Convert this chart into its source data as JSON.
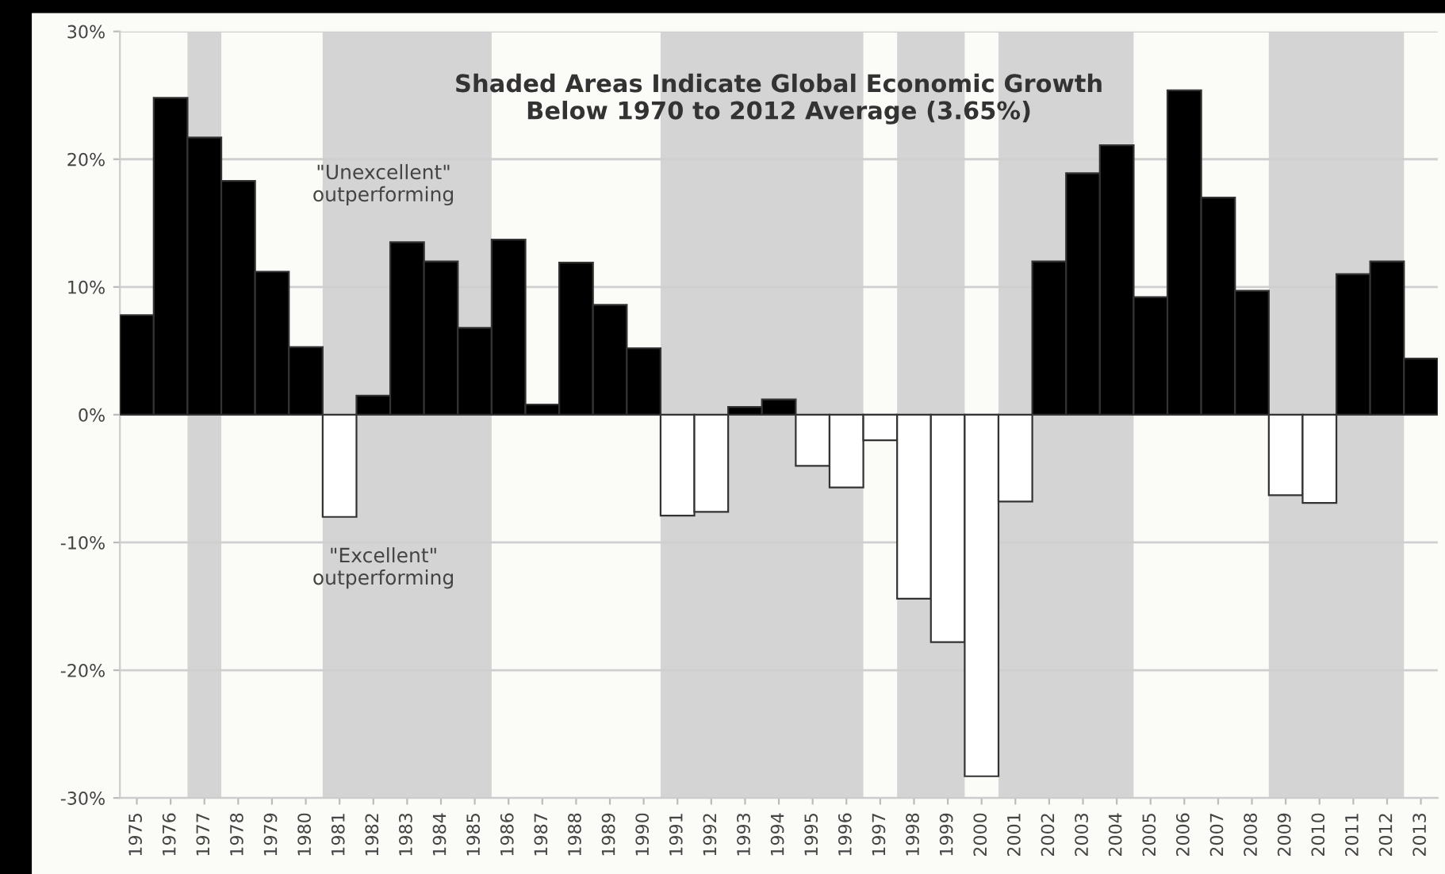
{
  "chart_data": {
    "type": "bar",
    "title": "Shaded Areas Indicate Global Economic Growth\nBelow 1970 to 2012 Average (3.65%)",
    "categories": [
      "1975",
      "1976",
      "1977",
      "1978",
      "1979",
      "1980",
      "1981",
      "1982",
      "1983",
      "1984",
      "1985",
      "1986",
      "1987",
      "1988",
      "1989",
      "1990",
      "1991",
      "1992",
      "1993",
      "1994",
      "1995",
      "1996",
      "1997",
      "1998",
      "1999",
      "2000",
      "2001",
      "2002",
      "2003",
      "2004",
      "2005",
      "2006",
      "2007",
      "2008",
      "2009",
      "2010",
      "2011",
      "2012",
      "2013"
    ],
    "values": [
      7.8,
      24.8,
      21.7,
      18.3,
      11.2,
      5.3,
      -8.0,
      1.5,
      13.5,
      12.0,
      6.8,
      13.7,
      0.8,
      11.9,
      8.6,
      5.2,
      -7.9,
      -7.6,
      0.6,
      1.2,
      -4.0,
      -5.7,
      -2.0,
      -14.4,
      -17.8,
      -28.3,
      -6.8,
      12.0,
      18.9,
      21.1,
      9.2,
      25.4,
      17.0,
      9.7,
      -6.3,
      -6.9,
      11.0,
      12.0,
      4.4
    ],
    "colors": [
      "#000000",
      "#000000",
      "#000000",
      "#000000",
      "#000000",
      "#000000",
      "#ffffff",
      "#000000",
      "#000000",
      "#000000",
      "#000000",
      "#000000",
      "#000000",
      "#000000",
      "#000000",
      "#000000",
      "#ffffff",
      "#ffffff",
      "#000000",
      "#000000",
      "#ffffff",
      "#ffffff",
      "#ffffff",
      "#ffffff",
      "#ffffff",
      "#ffffff",
      "#ffffff",
      "#000000",
      "#000000",
      "#000000",
      "#000000",
      "#000000",
      "#000000",
      "#000000",
      "#ffffff",
      "#ffffff",
      "#000000",
      "#000000",
      "#000000"
    ],
    "ylim": [
      -30,
      30
    ],
    "yticks": [
      {
        "value": -30,
        "label": "-30%"
      },
      {
        "value": -20,
        "label": "-20%"
      },
      {
        "value": -10,
        "label": "-10%"
      },
      {
        "value": 0,
        "label": "0%"
      },
      {
        "value": 10,
        "label": "10%"
      },
      {
        "value": 20,
        "label": "20%"
      },
      {
        "value": 30,
        "label": "30%"
      }
    ],
    "grid": "y",
    "bands": [
      {
        "axis": "x",
        "from": "1977",
        "to": "1977",
        "color": "#d4d4d4"
      },
      {
        "axis": "x",
        "from": "1981",
        "to": "1985",
        "color": "#d4d4d4"
      },
      {
        "axis": "x",
        "from": "1991",
        "to": "1996",
        "color": "#d4d4d4"
      },
      {
        "axis": "x",
        "from": "1998",
        "to": "1999",
        "color": "#d4d4d4"
      },
      {
        "axis": "x",
        "from": "2001",
        "to": "2004",
        "color": "#d4d4d4"
      },
      {
        "axis": "x",
        "from": "2009",
        "to": "2012",
        "color": "#d4d4d4"
      }
    ],
    "annotations": [
      "\"Unexcellent\"\noutperforming",
      "\"Excellent\"\noutperforming"
    ]
  }
}
